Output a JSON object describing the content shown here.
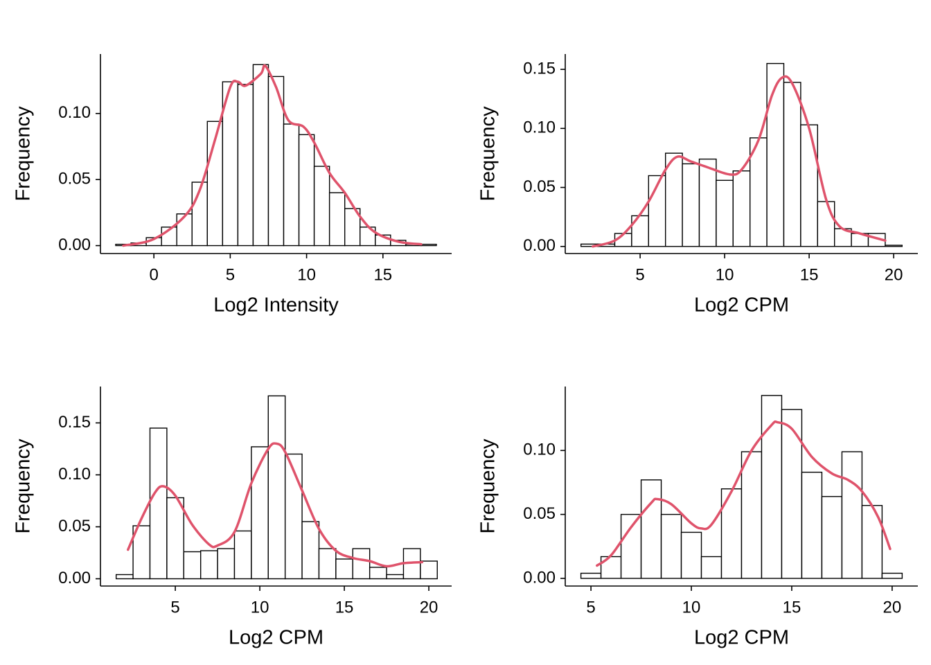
{
  "chart_data": [
    {
      "type": "histogram",
      "xlabel": "Log2 Intensity",
      "ylabel": "Frequency",
      "bins": [
        -2.5,
        -1.5,
        -0.5,
        0.5,
        1.5,
        2.5,
        3.5,
        4.5,
        5.5,
        6.5,
        7.5,
        8.5,
        9.5,
        10.5,
        11.5,
        12.5,
        13.5,
        14.5,
        15.5,
        16.5,
        17.5,
        18.5
      ],
      "values": [
        0.001,
        0.002,
        0.006,
        0.014,
        0.024,
        0.048,
        0.094,
        0.124,
        0.122,
        0.137,
        0.128,
        0.092,
        0.084,
        0.06,
        0.04,
        0.028,
        0.014,
        0.008,
        0.004,
        0.001,
        0.001
      ],
      "color": "#ffffff",
      "edgecolor": "#000000",
      "density": {
        "x": [
          -2,
          0,
          2,
          3,
          4,
          5,
          5.5,
          6,
          7,
          7.3,
          8,
          8.8,
          9.8,
          10.5,
          11.5,
          12.5,
          13.5,
          14.5,
          16,
          17.5
        ],
        "values": [
          0,
          0.005,
          0.022,
          0.042,
          0.08,
          0.12,
          0.124,
          0.121,
          0.13,
          0.136,
          0.12,
          0.095,
          0.09,
          0.078,
          0.055,
          0.04,
          0.022,
          0.01,
          0.003,
          0.001
        ],
        "color": "#DF536B"
      },
      "xlim": [
        -3.5,
        19.5
      ],
      "ylim": [
        -0.006,
        0.145
      ],
      "xticks": [
        0,
        5,
        10,
        15
      ],
      "yticks": [
        {
          "value": 0,
          "label": "0.00"
        },
        {
          "value": 0.05,
          "label": "0.05"
        },
        {
          "value": 0.1,
          "label": "0.10"
        }
      ]
    },
    {
      "type": "histogram",
      "xlabel": "Log2 CPM",
      "ylabel": "Frequency",
      "bins": [
        1.5,
        2.5,
        3.5,
        4.5,
        5.5,
        6.5,
        7.5,
        8.5,
        9.5,
        10.5,
        11.5,
        12.5,
        13.5,
        14.5,
        15.5,
        16.5,
        17.5,
        18.5,
        19.5,
        20.5
      ],
      "values": [
        0.002,
        0.002,
        0.011,
        0.026,
        0.06,
        0.079,
        0.07,
        0.074,
        0.056,
        0.064,
        0.092,
        0.155,
        0.139,
        0.103,
        0.038,
        0.015,
        0.011,
        0.011,
        0.001
      ],
      "color": "#ffffff",
      "edgecolor": "#000000",
      "density": {
        "x": [
          2.2,
          3.5,
          4.5,
          5.5,
          6.5,
          7.2,
          8,
          9,
          10.3,
          11,
          12,
          12.8,
          13.4,
          14,
          15,
          16,
          16.8,
          18,
          19.5
        ],
        "values": [
          0,
          0.005,
          0.018,
          0.038,
          0.065,
          0.076,
          0.072,
          0.067,
          0.061,
          0.065,
          0.09,
          0.128,
          0.143,
          0.138,
          0.1,
          0.04,
          0.017,
          0.011,
          0.005
        ],
        "color": "#DF536B"
      },
      "xlim": [
        0.57,
        21.43
      ],
      "ylim": [
        -0.006,
        0.163
      ],
      "xticks": [
        5,
        10,
        15,
        20
      ],
      "yticks": [
        {
          "value": 0,
          "label": "0.00"
        },
        {
          "value": 0.05,
          "label": "0.05"
        },
        {
          "value": 0.1,
          "label": "0.10"
        },
        {
          "value": 0.15,
          "label": "0.15"
        }
      ]
    },
    {
      "type": "histogram",
      "xlabel": "Log2 CPM",
      "ylabel": "Frequency",
      "bins": [
        1.5,
        2.5,
        3.5,
        4.5,
        5.5,
        6.5,
        7.5,
        8.5,
        9.5,
        10.5,
        11.5,
        12.5,
        13.5,
        14.5,
        15.5,
        16.5,
        17.5,
        18.5,
        19.5,
        20.5
      ],
      "values": [
        0.004,
        0.051,
        0.145,
        0.078,
        0.026,
        0.027,
        0.029,
        0.046,
        0.127,
        0.176,
        0.12,
        0.055,
        0.029,
        0.019,
        0.029,
        0.011,
        0.004,
        0.029,
        0.017
      ],
      "color": "#ffffff",
      "edgecolor": "#000000",
      "density": {
        "x": [
          2.2,
          3,
          3.8,
          4.3,
          5,
          6,
          7,
          7.5,
          8.5,
          9.5,
          10.5,
          11,
          11.5,
          12.5,
          13.5,
          14.5,
          15.5,
          16.5,
          17.5,
          18.5,
          19.6
        ],
        "values": [
          0.028,
          0.058,
          0.083,
          0.089,
          0.08,
          0.052,
          0.033,
          0.032,
          0.045,
          0.092,
          0.125,
          0.13,
          0.122,
          0.085,
          0.048,
          0.027,
          0.02,
          0.017,
          0.012,
          0.015,
          0.016
        ],
        "color": "#DF536B"
      },
      "xlim": [
        0.57,
        21.35
      ],
      "ylim": [
        -0.007,
        0.185
      ],
      "xticks": [
        5,
        10,
        15,
        20
      ],
      "yticks": [
        {
          "value": 0,
          "label": "0.00"
        },
        {
          "value": 0.05,
          "label": "0.05"
        },
        {
          "value": 0.1,
          "label": "0.10"
        },
        {
          "value": 0.15,
          "label": "0.15"
        }
      ]
    },
    {
      "type": "histogram",
      "xlabel": "Log2 CPM",
      "ylabel": "Frequency",
      "bins": [
        4.5,
        5.5,
        6.5,
        7.5,
        8.5,
        9.5,
        10.5,
        11.5,
        12.5,
        13.5,
        14.5,
        15.5,
        16.5,
        17.5,
        18.5,
        19.5,
        20.5
      ],
      "values": [
        0.004,
        0.017,
        0.05,
        0.077,
        0.05,
        0.036,
        0.017,
        0.07,
        0.099,
        0.143,
        0.132,
        0.083,
        0.064,
        0.099,
        0.057,
        0.004
      ],
      "color": "#ffffff",
      "edgecolor": "#000000",
      "density": {
        "x": [
          5.3,
          6,
          7,
          8,
          8.3,
          9,
          10,
          10.5,
          11,
          12,
          13,
          14,
          14.3,
          15,
          16,
          17,
          17.8,
          18.5,
          19.3,
          19.9
        ],
        "values": [
          0.01,
          0.018,
          0.04,
          0.059,
          0.062,
          0.058,
          0.043,
          0.039,
          0.042,
          0.068,
          0.1,
          0.12,
          0.122,
          0.117,
          0.095,
          0.082,
          0.077,
          0.068,
          0.048,
          0.023
        ],
        "color": "#DF536B"
      },
      "xlim": [
        3.72,
        21.28
      ],
      "ylim": [
        -0.006,
        0.15
      ],
      "xticks": [
        5,
        10,
        15,
        20
      ],
      "yticks": [
        {
          "value": 0,
          "label": "0.00"
        },
        {
          "value": 0.05,
          "label": "0.05"
        },
        {
          "value": 0.1,
          "label": "0.10"
        }
      ]
    }
  ]
}
